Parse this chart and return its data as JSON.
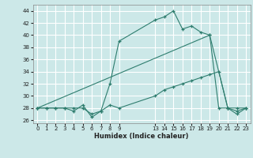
{
  "xlabel": "Humidex (Indice chaleur)",
  "bg_color": "#cce8e8",
  "grid_color": "#ffffff",
  "line_color": "#2e7d6e",
  "line1_x": [
    0,
    1,
    2,
    3,
    4,
    5,
    6,
    7,
    8,
    9,
    13,
    14,
    15,
    16,
    17,
    18,
    19,
    21,
    22,
    23
  ],
  "line1_y": [
    28,
    28,
    28,
    28,
    28,
    28,
    27,
    27.5,
    32,
    39,
    42.5,
    43,
    44,
    41,
    41.5,
    40.5,
    40,
    28,
    27.5,
    28
  ],
  "line2_x": [
    0,
    19,
    20,
    21,
    22,
    23
  ],
  "line2_y": [
    28,
    40,
    28,
    28,
    28,
    28
  ],
  "line3_x": [
    0,
    1,
    2,
    3,
    4,
    5,
    6,
    7,
    8,
    9,
    13,
    14,
    15,
    16,
    17,
    18,
    19,
    20,
    21,
    22,
    23
  ],
  "line3_y": [
    28,
    28,
    28,
    28,
    27.5,
    28.5,
    26.5,
    27.5,
    28.5,
    28,
    30,
    31,
    31.5,
    32,
    32.5,
    33,
    33.5,
    34,
    28,
    27,
    28
  ],
  "ylim": [
    25.5,
    45
  ],
  "yticks": [
    26,
    28,
    30,
    32,
    34,
    36,
    38,
    40,
    42,
    44
  ],
  "xtick_positions": [
    0,
    1,
    2,
    3,
    4,
    5,
    6,
    7,
    8,
    9,
    13,
    14,
    15,
    16,
    17,
    18,
    19,
    20,
    21,
    22,
    23
  ],
  "xtick_labels": [
    "0",
    "1",
    "2",
    "3",
    "4",
    "5",
    "6",
    "7",
    "8",
    "9",
    "13",
    "14",
    "15",
    "16",
    "17",
    "18",
    "19",
    "20",
    "21",
    "22",
    "23"
  ],
  "xlim": [
    -0.5,
    23.5
  ]
}
